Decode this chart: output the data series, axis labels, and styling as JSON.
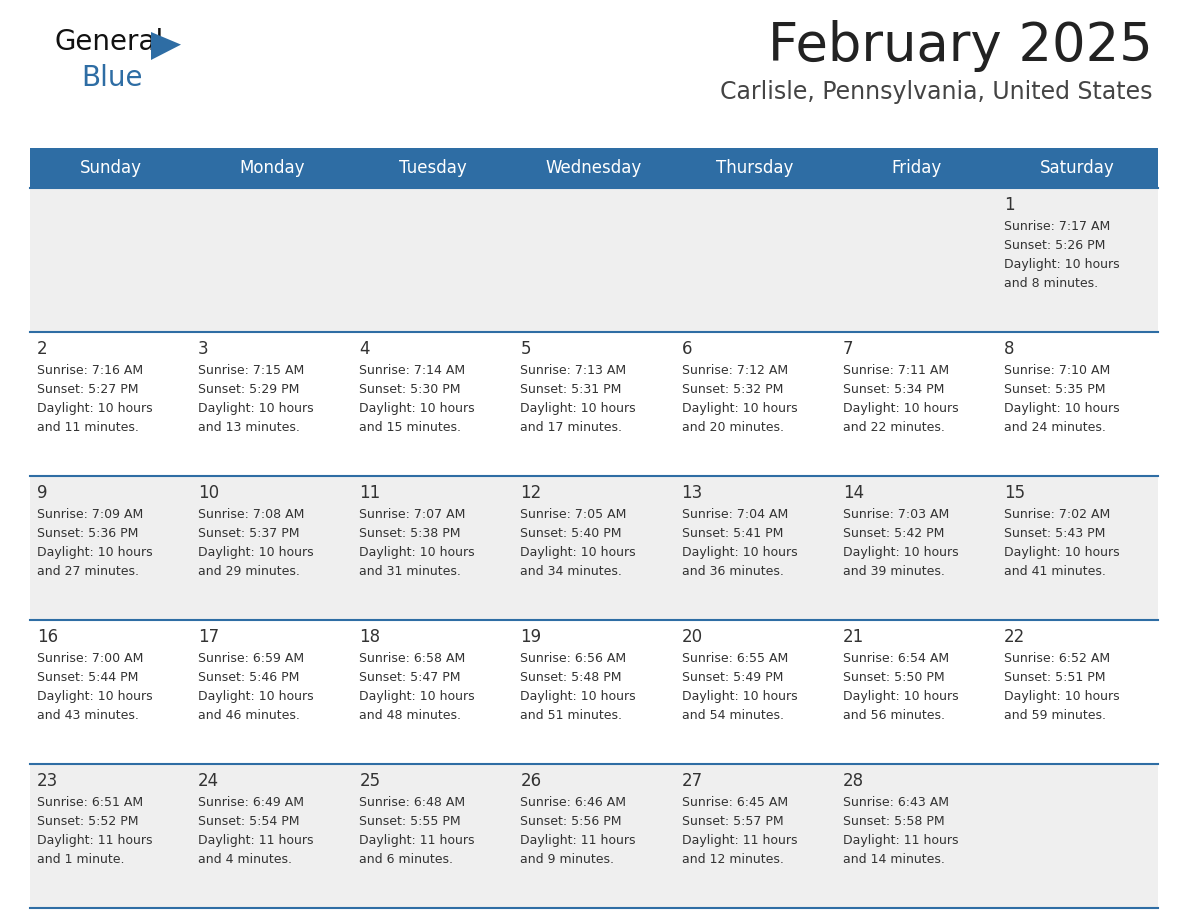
{
  "title": "February 2025",
  "subtitle": "Carlisle, Pennsylvania, United States",
  "header_bg": "#2E6DA4",
  "header_text_color": "#FFFFFF",
  "cell_bg_light": "#EFEFEF",
  "cell_bg_white": "#FFFFFF",
  "divider_color": "#2E6DA4",
  "text_color": "#333333",
  "days_of_week": [
    "Sunday",
    "Monday",
    "Tuesday",
    "Wednesday",
    "Thursday",
    "Friday",
    "Saturday"
  ],
  "calendar_data": [
    [
      null,
      null,
      null,
      null,
      null,
      null,
      {
        "day": "1",
        "sunrise": "7:17 AM",
        "sunset": "5:26 PM",
        "daylight_h": "10 hours",
        "daylight_m": "and 8 minutes."
      }
    ],
    [
      {
        "day": "2",
        "sunrise": "7:16 AM",
        "sunset": "5:27 PM",
        "daylight_h": "10 hours",
        "daylight_m": "and 11 minutes."
      },
      {
        "day": "3",
        "sunrise": "7:15 AM",
        "sunset": "5:29 PM",
        "daylight_h": "10 hours",
        "daylight_m": "and 13 minutes."
      },
      {
        "day": "4",
        "sunrise": "7:14 AM",
        "sunset": "5:30 PM",
        "daylight_h": "10 hours",
        "daylight_m": "and 15 minutes."
      },
      {
        "day": "5",
        "sunrise": "7:13 AM",
        "sunset": "5:31 PM",
        "daylight_h": "10 hours",
        "daylight_m": "and 17 minutes."
      },
      {
        "day": "6",
        "sunrise": "7:12 AM",
        "sunset": "5:32 PM",
        "daylight_h": "10 hours",
        "daylight_m": "and 20 minutes."
      },
      {
        "day": "7",
        "sunrise": "7:11 AM",
        "sunset": "5:34 PM",
        "daylight_h": "10 hours",
        "daylight_m": "and 22 minutes."
      },
      {
        "day": "8",
        "sunrise": "7:10 AM",
        "sunset": "5:35 PM",
        "daylight_h": "10 hours",
        "daylight_m": "and 24 minutes."
      }
    ],
    [
      {
        "day": "9",
        "sunrise": "7:09 AM",
        "sunset": "5:36 PM",
        "daylight_h": "10 hours",
        "daylight_m": "and 27 minutes."
      },
      {
        "day": "10",
        "sunrise": "7:08 AM",
        "sunset": "5:37 PM",
        "daylight_h": "10 hours",
        "daylight_m": "and 29 minutes."
      },
      {
        "day": "11",
        "sunrise": "7:07 AM",
        "sunset": "5:38 PM",
        "daylight_h": "10 hours",
        "daylight_m": "and 31 minutes."
      },
      {
        "day": "12",
        "sunrise": "7:05 AM",
        "sunset": "5:40 PM",
        "daylight_h": "10 hours",
        "daylight_m": "and 34 minutes."
      },
      {
        "day": "13",
        "sunrise": "7:04 AM",
        "sunset": "5:41 PM",
        "daylight_h": "10 hours",
        "daylight_m": "and 36 minutes."
      },
      {
        "day": "14",
        "sunrise": "7:03 AM",
        "sunset": "5:42 PM",
        "daylight_h": "10 hours",
        "daylight_m": "and 39 minutes."
      },
      {
        "day": "15",
        "sunrise": "7:02 AM",
        "sunset": "5:43 PM",
        "daylight_h": "10 hours",
        "daylight_m": "and 41 minutes."
      }
    ],
    [
      {
        "day": "16",
        "sunrise": "7:00 AM",
        "sunset": "5:44 PM",
        "daylight_h": "10 hours",
        "daylight_m": "and 43 minutes."
      },
      {
        "day": "17",
        "sunrise": "6:59 AM",
        "sunset": "5:46 PM",
        "daylight_h": "10 hours",
        "daylight_m": "and 46 minutes."
      },
      {
        "day": "18",
        "sunrise": "6:58 AM",
        "sunset": "5:47 PM",
        "daylight_h": "10 hours",
        "daylight_m": "and 48 minutes."
      },
      {
        "day": "19",
        "sunrise": "6:56 AM",
        "sunset": "5:48 PM",
        "daylight_h": "10 hours",
        "daylight_m": "and 51 minutes."
      },
      {
        "day": "20",
        "sunrise": "6:55 AM",
        "sunset": "5:49 PM",
        "daylight_h": "10 hours",
        "daylight_m": "and 54 minutes."
      },
      {
        "day": "21",
        "sunrise": "6:54 AM",
        "sunset": "5:50 PM",
        "daylight_h": "10 hours",
        "daylight_m": "and 56 minutes."
      },
      {
        "day": "22",
        "sunrise": "6:52 AM",
        "sunset": "5:51 PM",
        "daylight_h": "10 hours",
        "daylight_m": "and 59 minutes."
      }
    ],
    [
      {
        "day": "23",
        "sunrise": "6:51 AM",
        "sunset": "5:52 PM",
        "daylight_h": "11 hours",
        "daylight_m": "and 1 minute."
      },
      {
        "day": "24",
        "sunrise": "6:49 AM",
        "sunset": "5:54 PM",
        "daylight_h": "11 hours",
        "daylight_m": "and 4 minutes."
      },
      {
        "day": "25",
        "sunrise": "6:48 AM",
        "sunset": "5:55 PM",
        "daylight_h": "11 hours",
        "daylight_m": "and 6 minutes."
      },
      {
        "day": "26",
        "sunrise": "6:46 AM",
        "sunset": "5:56 PM",
        "daylight_h": "11 hours",
        "daylight_m": "and 9 minutes."
      },
      {
        "day": "27",
        "sunrise": "6:45 AM",
        "sunset": "5:57 PM",
        "daylight_h": "11 hours",
        "daylight_m": "and 12 minutes."
      },
      {
        "day": "28",
        "sunrise": "6:43 AM",
        "sunset": "5:58 PM",
        "daylight_h": "11 hours",
        "daylight_m": "and 14 minutes."
      },
      null
    ]
  ]
}
